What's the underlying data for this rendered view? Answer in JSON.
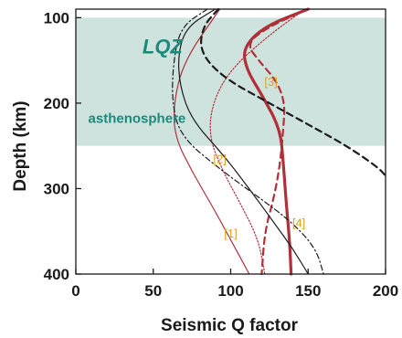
{
  "chart_data": {
    "type": "line",
    "xlabel": "Seismic Q factor",
    "ylabel": "Depth (km)",
    "xlim": [
      0,
      200
    ],
    "ylim": [
      400,
      90
    ],
    "y_inverted": true,
    "x_ticks": [
      0,
      50,
      100,
      150,
      200
    ],
    "y_ticks": [
      100,
      200,
      300,
      400
    ],
    "grid": false,
    "regions": [
      {
        "name": "LQZ",
        "depth_range": [
          100,
          250
        ],
        "color": "#cfe3de"
      }
    ],
    "annotations": [
      {
        "text": "LQZ",
        "q": 43,
        "depth": 142
      },
      {
        "text": "asthenosphere",
        "q": 8,
        "depth": 223
      }
    ],
    "series": [
      {
        "label": "[1]",
        "color": "#b0303a",
        "style": "solid-thin",
        "points": [
          [
            93,
            90
          ],
          [
            70,
            150
          ],
          [
            63,
            200
          ],
          [
            64,
            240
          ],
          [
            75,
            280
          ],
          [
            88,
            320
          ],
          [
            100,
            360
          ],
          [
            112,
            400
          ]
        ]
      },
      {
        "label": "[2]",
        "color": "#b0303a",
        "style": "dotted",
        "points": [
          [
            148,
            90
          ],
          [
            125,
            120
          ],
          [
            100,
            160
          ],
          [
            88,
            200
          ],
          [
            86,
            240
          ],
          [
            95,
            280
          ],
          [
            107,
            320
          ],
          [
            118,
            360
          ],
          [
            122,
            400
          ]
        ]
      },
      {
        "label": "[3]",
        "color": "#b0303a",
        "style": "dashed",
        "points": [
          [
            150,
            90
          ],
          [
            125,
            110
          ],
          [
            110,
            130
          ],
          [
            118,
            150
          ],
          [
            130,
            175
          ],
          [
            135,
            200
          ],
          [
            134,
            230
          ],
          [
            132,
            270
          ],
          [
            128,
            310
          ],
          [
            122,
            350
          ],
          [
            120,
            400
          ]
        ]
      },
      {
        "label": "[4]",
        "color": "#b0303a",
        "style": "solid-thick",
        "points": [
          [
            150,
            90
          ],
          [
            122,
            110
          ],
          [
            108,
            135
          ],
          [
            110,
            160
          ],
          [
            120,
            190
          ],
          [
            132,
            230
          ],
          [
            134,
            270
          ],
          [
            136,
            320
          ],
          [
            138,
            360
          ],
          [
            139,
            400
          ]
        ]
      },
      {
        "color": "#1a1a1a",
        "style": "solid",
        "points": [
          [
            90,
            90
          ],
          [
            72,
            110
          ],
          [
            66,
            140
          ],
          [
            67,
            180
          ],
          [
            75,
            220
          ],
          [
            95,
            260
          ],
          [
            112,
            300
          ],
          [
            128,
            340
          ],
          [
            140,
            370
          ],
          [
            150,
            400
          ]
        ]
      },
      {
        "color": "#1a1a1a",
        "style": "dashed",
        "points": [
          [
            92,
            90
          ],
          [
            82,
            110
          ],
          [
            80,
            140
          ],
          [
            95,
            170
          ],
          [
            125,
            200
          ],
          [
            150,
            225
          ],
          [
            175,
            250
          ],
          [
            195,
            275
          ],
          [
            200,
            285
          ]
        ]
      },
      {
        "color": "#1a1a1a",
        "style": "dash-dot",
        "points": [
          [
            85,
            90
          ],
          [
            68,
            110
          ],
          [
            63,
            150
          ],
          [
            62,
            200
          ],
          [
            68,
            240
          ],
          [
            95,
            280
          ],
          [
            118,
            310
          ],
          [
            140,
            340
          ],
          [
            155,
            370
          ],
          [
            160,
            400
          ]
        ]
      }
    ],
    "series_label_positions": [
      {
        "label": "[1]",
        "q": 100,
        "depth": 357
      },
      {
        "label": "[2]",
        "q": 93,
        "depth": 270
      },
      {
        "label": "[3]",
        "q": 126,
        "depth": 180
      },
      {
        "label": "[4]",
        "q": 144,
        "depth": 345
      }
    ]
  }
}
